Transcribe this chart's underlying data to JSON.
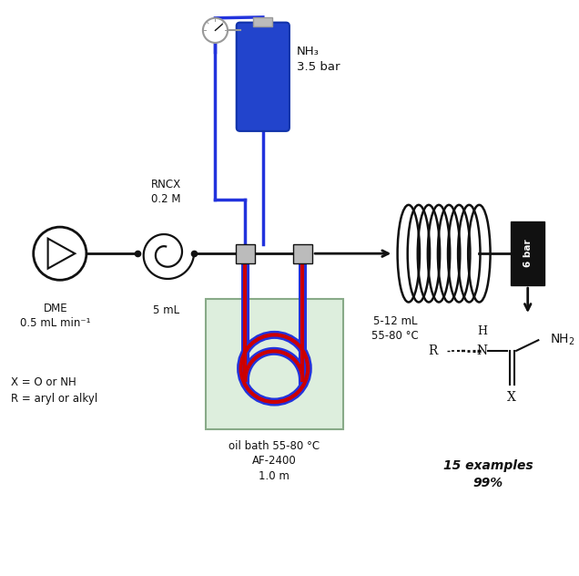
{
  "bg_color": "#ffffff",
  "figsize": [
    6.36,
    6.32
  ],
  "dpi": 100,
  "labels": {
    "dme": "DME\n0.5 mL min⁻¹",
    "rncx": "RNCX\n0.2 M",
    "5mL": "5 mL",
    "nh3": "NH₃\n3.5 bar",
    "oilbath": "oil bath 55-80 °C\nAF-2400\n1.0 m",
    "reactor": "5-12 mL\n55-80 °C",
    "6bar": "6 bar",
    "X_eq": "X = O or NH\nR = aryl or alkyl",
    "examples": "15 examples\n99%"
  }
}
